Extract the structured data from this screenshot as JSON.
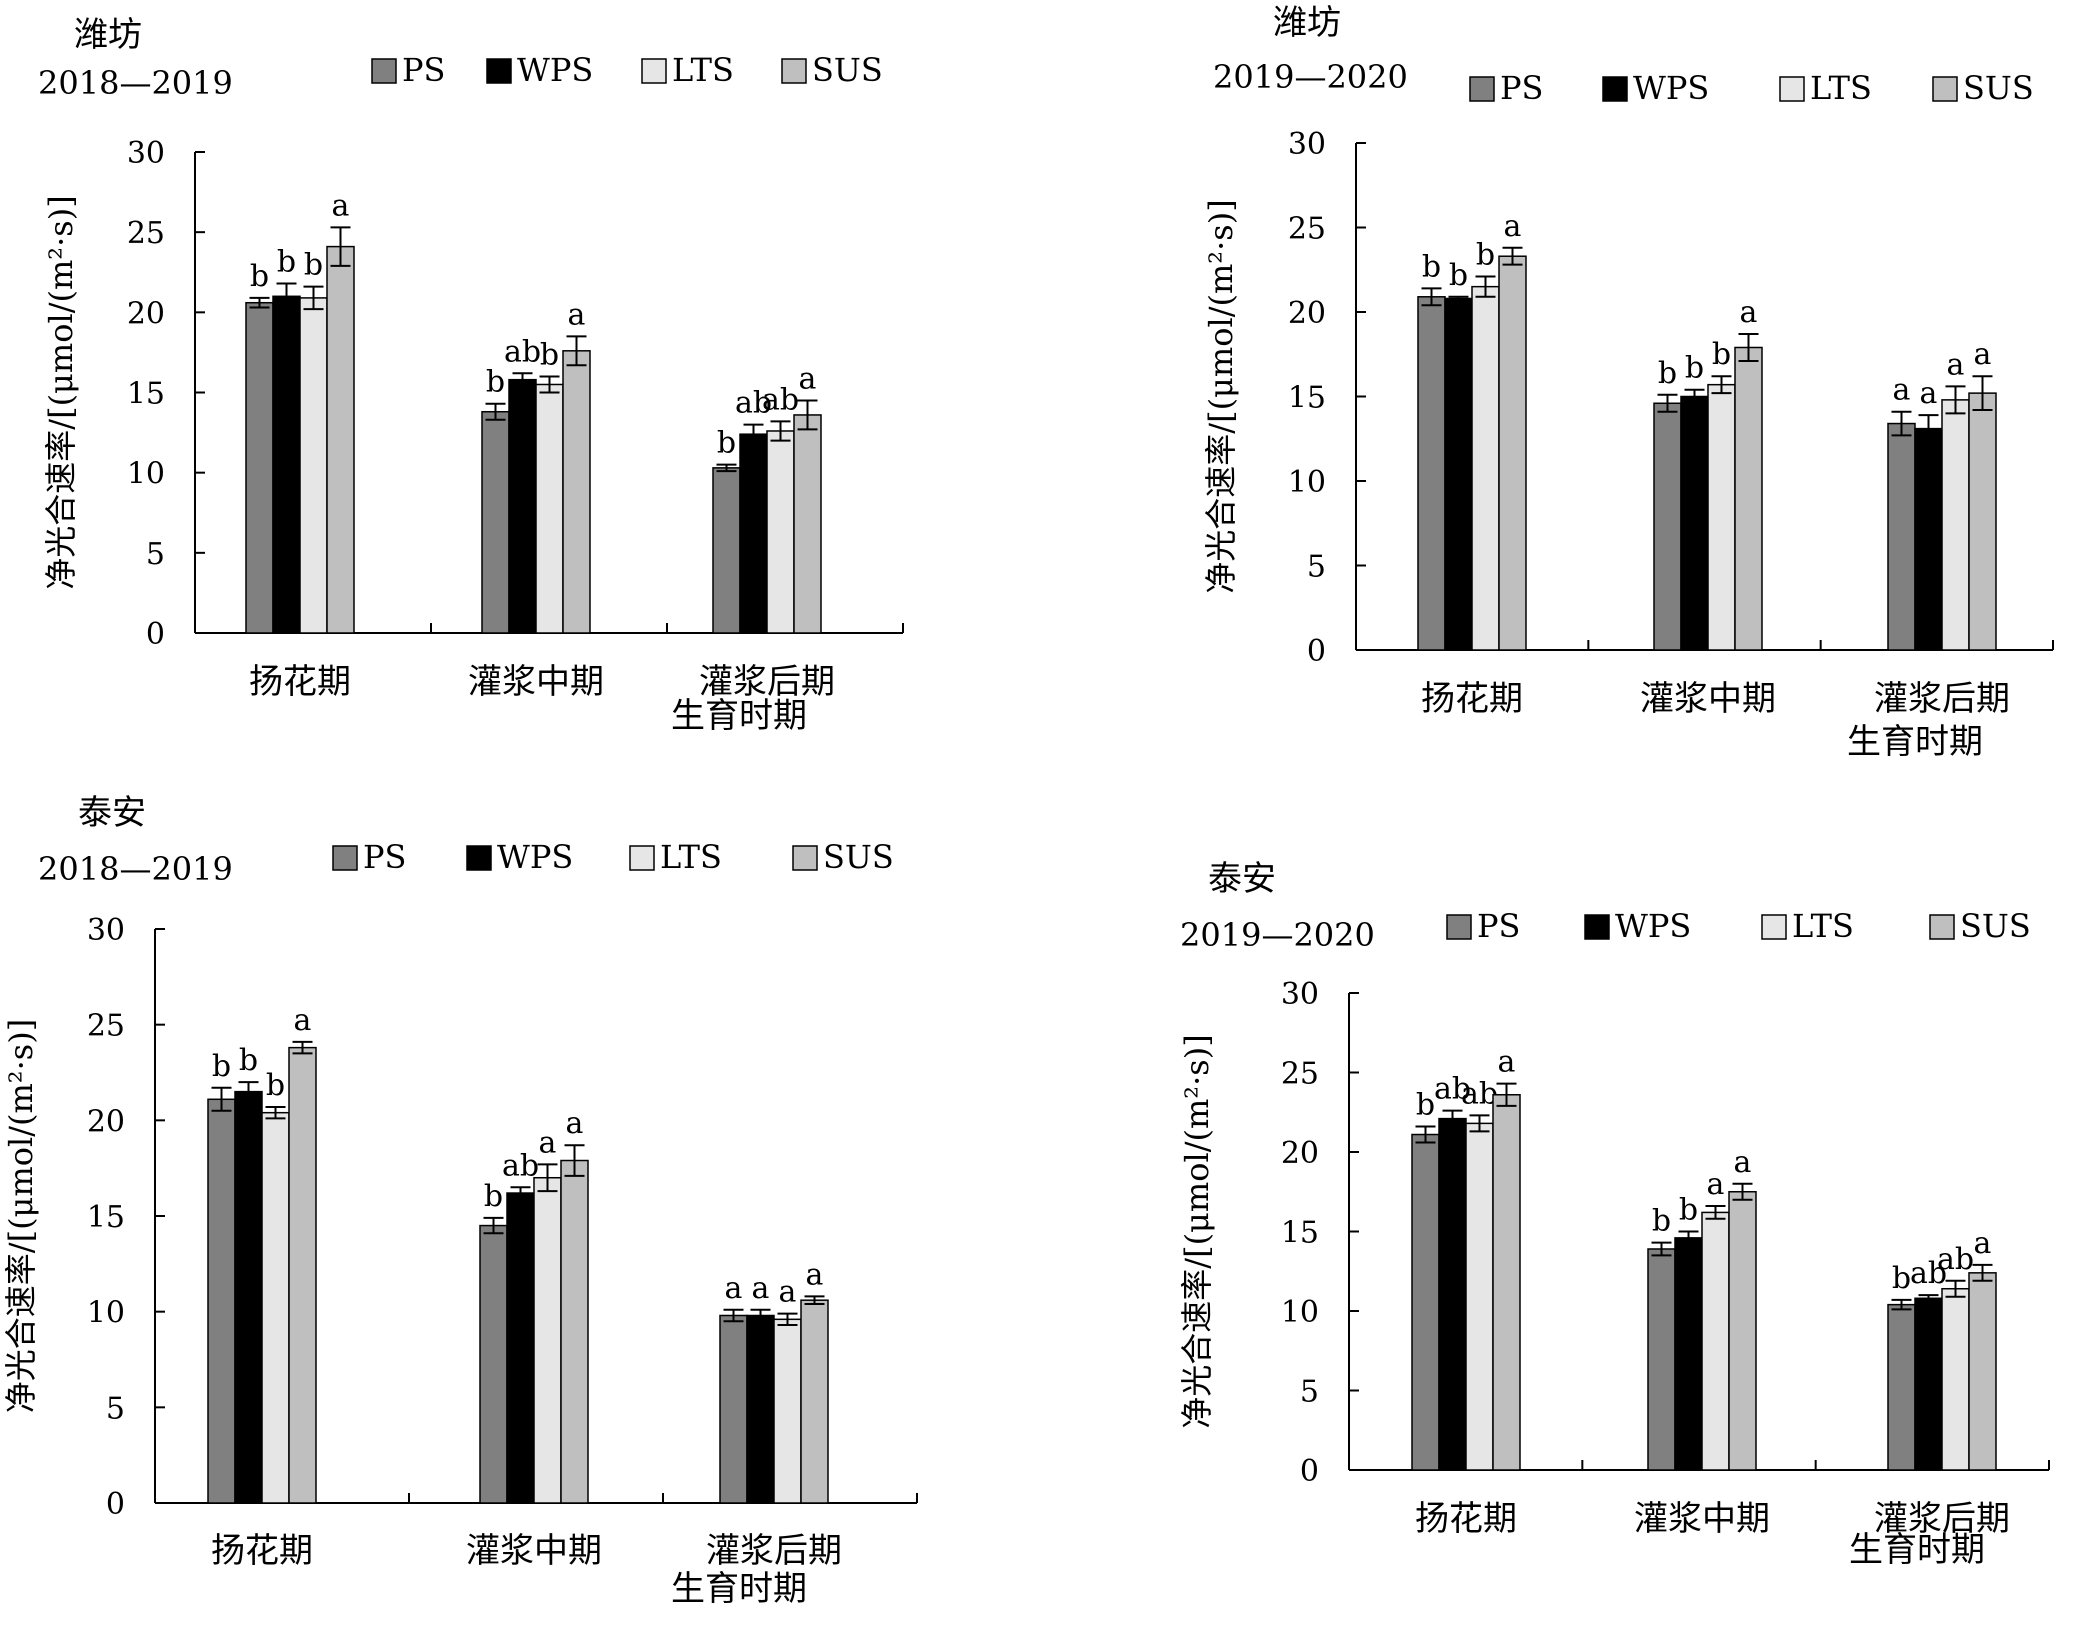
{
  "colors": {
    "PS": "#808080",
    "WPS": "#000000",
    "LTS": "#e6e6e6",
    "SUS": "#bfbfbf",
    "axis": "#000000"
  },
  "chart_data": [
    {
      "type": "bar",
      "location": "潍坊",
      "year": "2018—2019",
      "title": "",
      "ylabel": "净光合速率/[(μmol/(m²·s)]",
      "xlabel": "生育时期",
      "ylim": [
        0,
        30
      ],
      "yticks": [
        "0",
        "5",
        "10",
        "15",
        "20",
        "25",
        "30"
      ],
      "categories": [
        "扬花期",
        "灌浆中期",
        "灌浆后期"
      ],
      "legend": [
        "PS",
        "WPS",
        "LTS",
        "SUS"
      ],
      "series": [
        {
          "name": "PS",
          "values": [
            20.6,
            13.8,
            10.3
          ],
          "errors": [
            0.3,
            0.5,
            0.2
          ]
        },
        {
          "name": "WPS",
          "values": [
            21.0,
            15.8,
            12.4
          ],
          "errors": [
            0.8,
            0.4,
            0.6
          ]
        },
        {
          "name": "LTS",
          "values": [
            20.9,
            15.5,
            12.6
          ],
          "errors": [
            0.7,
            0.5,
            0.6
          ]
        },
        {
          "name": "SUS",
          "values": [
            24.1,
            17.6,
            13.6
          ],
          "errors": [
            1.2,
            0.9,
            0.9
          ]
        }
      ],
      "letters": [
        [
          "b",
          "b",
          "b",
          "a"
        ],
        [
          "b",
          "ab",
          "b",
          "a"
        ],
        [
          "b",
          "ab",
          "ab",
          "a"
        ]
      ]
    },
    {
      "type": "bar",
      "location": "潍坊",
      "year": "2019—2020",
      "title": "",
      "ylabel": "净光合速率/[(μmol/(m²·s)]",
      "xlabel": "生育时期",
      "ylim": [
        0,
        30
      ],
      "yticks": [
        "0",
        "5",
        "10",
        "15",
        "20",
        "25",
        "30"
      ],
      "categories": [
        "扬花期",
        "灌浆中期",
        "灌浆后期"
      ],
      "legend": [
        "PS",
        "WPS",
        "LTS",
        "SUS"
      ],
      "series": [
        {
          "name": "PS",
          "values": [
            20.9,
            14.6,
            13.4
          ],
          "errors": [
            0.5,
            0.5,
            0.7
          ]
        },
        {
          "name": "WPS",
          "values": [
            20.8,
            15.0,
            13.1
          ],
          "errors": [
            0.1,
            0.4,
            0.8
          ]
        },
        {
          "name": "LTS",
          "values": [
            21.5,
            15.7,
            14.8
          ],
          "errors": [
            0.6,
            0.5,
            0.8
          ]
        },
        {
          "name": "SUS",
          "values": [
            23.3,
            17.9,
            15.2
          ],
          "errors": [
            0.5,
            0.8,
            1.0
          ]
        }
      ],
      "letters": [
        [
          "b",
          "b",
          "b",
          "a"
        ],
        [
          "b",
          "b",
          "b",
          "a"
        ],
        [
          "a",
          "a",
          "a",
          "a"
        ]
      ]
    },
    {
      "type": "bar",
      "location": "泰安",
      "year": "2018—2019",
      "title": "",
      "ylabel": "净光合速率/[(μmol/(m²·s)]",
      "xlabel": "生育时期",
      "ylim": [
        0,
        30
      ],
      "yticks": [
        "0",
        "5",
        "10",
        "15",
        "20",
        "25",
        "30"
      ],
      "categories": [
        "扬花期",
        "灌浆中期",
        "灌浆后期"
      ],
      "legend": [
        "PS",
        "WPS",
        "LTS",
        "SUS"
      ],
      "series": [
        {
          "name": "PS",
          "values": [
            21.1,
            14.5,
            9.8
          ],
          "errors": [
            0.6,
            0.4,
            0.3
          ]
        },
        {
          "name": "WPS",
          "values": [
            21.5,
            16.2,
            9.8
          ],
          "errors": [
            0.5,
            0.3,
            0.3
          ]
        },
        {
          "name": "LTS",
          "values": [
            20.4,
            17.0,
            9.6
          ],
          "errors": [
            0.3,
            0.7,
            0.3
          ]
        },
        {
          "name": "SUS",
          "values": [
            23.8,
            17.9,
            10.6
          ],
          "errors": [
            0.3,
            0.8,
            0.2
          ]
        }
      ],
      "letters": [
        [
          "b",
          "b",
          "b",
          "a"
        ],
        [
          "b",
          "ab",
          "a",
          "a"
        ],
        [
          "a",
          "a",
          "a",
          "a"
        ]
      ]
    },
    {
      "type": "bar",
      "location": "泰安",
      "year": "2019—2020",
      "title": "",
      "ylabel": "净光合速率/[(μmol/(m²·s)]",
      "xlabel": "生育时期",
      "ylim": [
        0,
        30
      ],
      "yticks": [
        "0",
        "5",
        "10",
        "15",
        "20",
        "25",
        "30"
      ],
      "categories": [
        "扬花期",
        "灌浆中期",
        "灌浆后期"
      ],
      "legend": [
        "PS",
        "WPS",
        "LTS",
        "SUS"
      ],
      "series": [
        {
          "name": "PS",
          "values": [
            21.1,
            13.9,
            10.4
          ],
          "errors": [
            0.5,
            0.4,
            0.3
          ]
        },
        {
          "name": "WPS",
          "values": [
            22.1,
            14.6,
            10.8
          ],
          "errors": [
            0.5,
            0.4,
            0.2
          ]
        },
        {
          "name": "LTS",
          "values": [
            21.8,
            16.2,
            11.4
          ],
          "errors": [
            0.5,
            0.4,
            0.5
          ]
        },
        {
          "name": "SUS",
          "values": [
            23.6,
            17.5,
            12.4
          ],
          "errors": [
            0.7,
            0.5,
            0.5
          ]
        }
      ],
      "letters": [
        [
          "b",
          "ab",
          "ab",
          "a"
        ],
        [
          "b",
          "b",
          "a",
          "a"
        ],
        [
          "b",
          "ab",
          "ab",
          "a"
        ]
      ]
    }
  ]
}
